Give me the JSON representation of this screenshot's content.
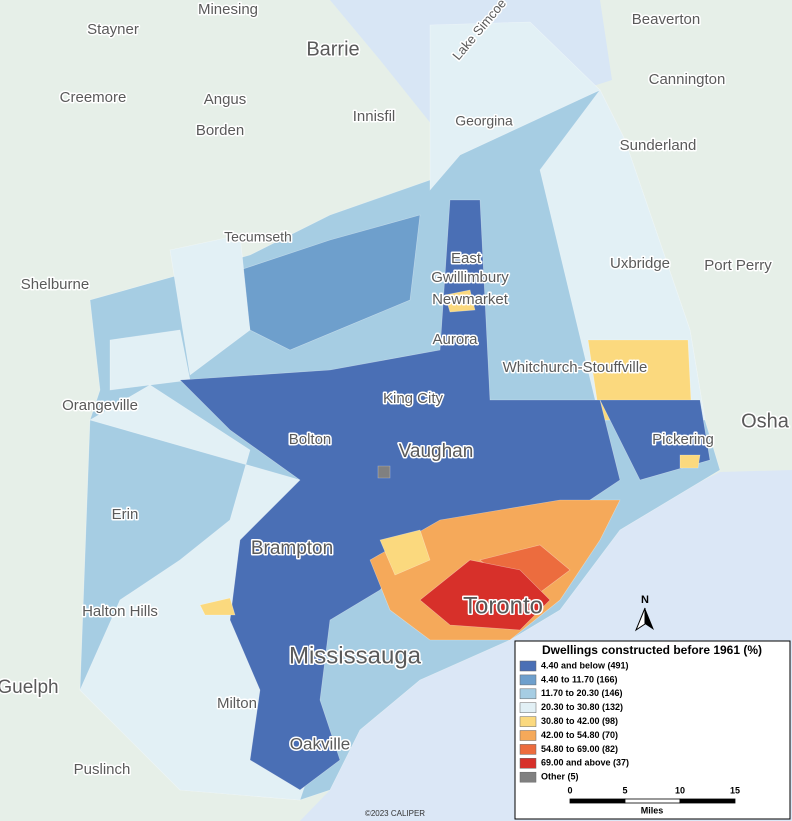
{
  "map": {
    "places": [
      "Minesing",
      "Stayner",
      "Barrie",
      "Creemore",
      "Angus",
      "Borden",
      "Innisfil",
      "Georgina",
      "Beaverton",
      "Cannington",
      "Sunderland",
      "Tecumseth",
      "Shelburne",
      "East",
      "Gwillimbury",
      "Newmarket",
      "Uxbridge",
      "Port Perry",
      "Aurora",
      "Whitchurch-Stouffville",
      "Orangeville",
      "King City",
      "Bolton",
      "Vaughan",
      "Pickering",
      "Osha",
      "Erin",
      "Brampton",
      "Halton Hills",
      "Toronto",
      "Mississauga",
      "Milton",
      "Guelph",
      "Oakville",
      "Puslinch",
      "Lake Simcoe"
    ],
    "north": "N",
    "credit": "©2023 CALIPER",
    "legend": {
      "title": "Dwellings constructed before 1961 (%)",
      "entries": [
        {
          "label": "4.40 and below (491)",
          "color": "#4a6fb5"
        },
        {
          "label": "4.40 to 11.70 (166)",
          "color": "#6e9fcc"
        },
        {
          "label": "11.70 to 20.30 (146)",
          "color": "#a6cde3"
        },
        {
          "label": "20.30 to 30.80 (132)",
          "color": "#e2f0f5"
        },
        {
          "label": "30.80 to 42.00 (98)",
          "color": "#fbd97e"
        },
        {
          "label": "42.00 to 54.80 (70)",
          "color": "#f5a95a"
        },
        {
          "label": "54.80 to 69.00 (82)",
          "color": "#ec6c3e"
        },
        {
          "label": "69.00 and above (37)",
          "color": "#d7302a"
        },
        {
          "label": "Other (5)",
          "color": "#808080"
        }
      ],
      "scale": {
        "ticks": [
          "0",
          "5",
          "10",
          "15"
        ],
        "unit": "Miles"
      }
    }
  }
}
